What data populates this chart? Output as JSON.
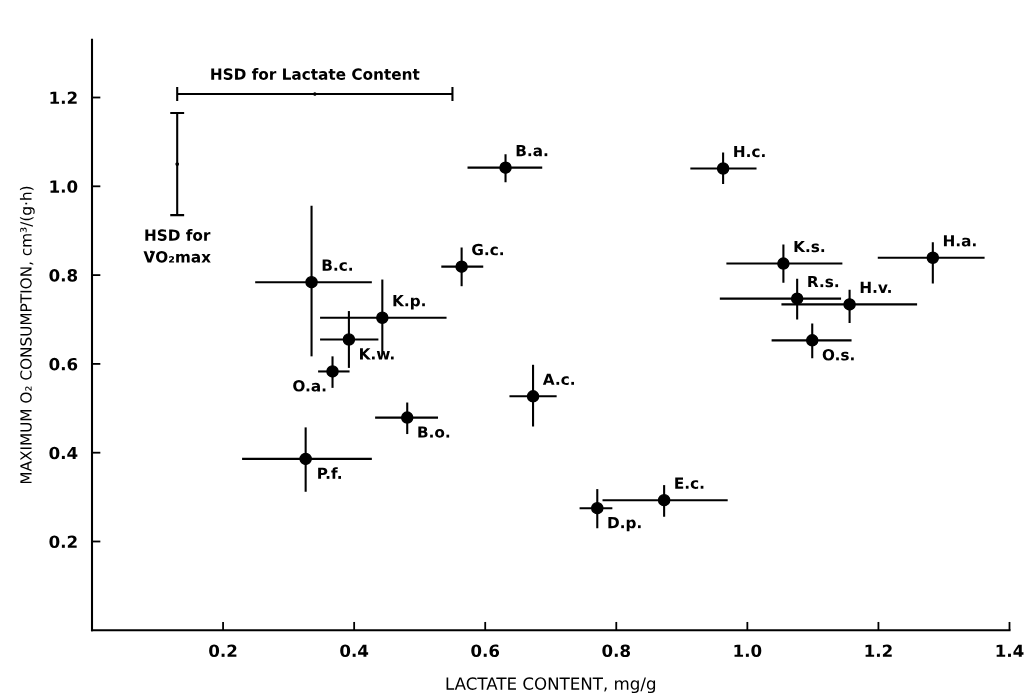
{
  "chart_data": {
    "type": "scatter",
    "xlabel": "LACTATE CONTENT, mg/g",
    "ylabel": "MAXIMUM O₂ CONSUMPTION, cm³/(g·h)",
    "xlim": [
      0,
      1.4
    ],
    "xticks": [
      0.2,
      0.4,
      0.6,
      0.8,
      {
        "value": 1,
        "label": "1.0"
      },
      1.2,
      1.4
    ],
    "ylim": [
      0,
      1.33
    ],
    "yticks": [
      0.2,
      0.4,
      0.6,
      0.8,
      {
        "value": 1,
        "label": "1.0"
      },
      1.2
    ],
    "grid": false,
    "series": [
      {
        "type": "scatter",
        "marker": "circle",
        "color": "#000000",
        "x": [
          0.631,
          0.564,
          0.335,
          0.443,
          0.392,
          0.367,
          0.673,
          0.481,
          0.326,
          0.771,
          0.873,
          0.963,
          1.055,
          1.283,
          1.076,
          1.156,
          1.099
        ],
        "values": [
          1.042,
          0.819,
          0.784,
          0.704,
          0.655,
          0.583,
          0.527,
          0.479,
          0.386,
          0.275,
          0.293,
          1.04,
          0.826,
          0.839,
          0.747,
          0.734,
          0.653
        ],
        "errors": [
          [
            1.009,
            1.072
          ],
          [
            0.775,
            0.862
          ],
          [
            0.617,
            0.956
          ],
          [
            0.621,
            0.79
          ],
          [
            0.591,
            0.719
          ],
          [
            0.546,
            0.617
          ],
          [
            0.459,
            0.598
          ],
          [
            0.442,
            0.513
          ],
          [
            0.312,
            0.457
          ],
          [
            0.23,
            0.318
          ],
          [
            0.256,
            0.327
          ],
          [
            1.005,
            1.076
          ],
          [
            0.783,
            0.869
          ],
          [
            0.781,
            0.874
          ],
          [
            0.7,
            0.792
          ],
          [
            0.692,
            0.767
          ],
          [
            0.613,
            0.691
          ]
        ],
        "xerrors": [
          [
            0.573,
            0.687
          ],
          [
            0.533,
            0.597
          ],
          [
            0.249,
            0.427
          ],
          [
            0.348,
            0.541
          ],
          [
            0.348,
            0.437
          ],
          [
            0.345,
            0.393
          ],
          [
            0.637,
            0.709
          ],
          [
            0.432,
            0.528
          ],
          [
            0.229,
            0.427
          ],
          [
            0.744,
            0.794
          ],
          [
            0.779,
            0.97
          ],
          [
            0.913,
            1.014
          ],
          [
            0.968,
            1.145
          ],
          [
            1.199,
            1.362
          ],
          [
            0.958,
            1.143
          ],
          [
            1.052,
            1.259
          ],
          [
            1.037,
            1.159
          ]
        ]
      },
      {
        "type": "scatter",
        "marker": "none",
        "color": "#000000",
        "x": [
          0.13,
          0.34
        ],
        "values": [
          1.05,
          1.208
        ],
        "errors": [
          [
            0.935,
            1.165
          ],
          null
        ],
        "xerrors": [
          null,
          [
            0.13,
            0.55
          ]
        ]
      }
    ],
    "annotations": [
      {
        "text": "HSD for Lactate Content",
        "x": 0.34,
        "y": 1.208
      },
      {
        "text": "HSD for\nV̇O₂max",
        "x": 0.13,
        "y": 0.935
      },
      {
        "text": "B.a.",
        "x": 0.631,
        "y": 1.042
      },
      {
        "text": "G.c.",
        "x": 0.564,
        "y": 0.819
      },
      {
        "text": "B.c.",
        "x": 0.335,
        "y": 0.784
      },
      {
        "text": "K.p.",
        "x": 0.443,
        "y": 0.704
      },
      {
        "text": "K.w.",
        "x": 0.392,
        "y": 0.655
      },
      {
        "text": "O.a.",
        "x": 0.367,
        "y": 0.583
      },
      {
        "text": "A.c.",
        "x": 0.673,
        "y": 0.527
      },
      {
        "text": "B.o.",
        "x": 0.481,
        "y": 0.479
      },
      {
        "text": "P.f.",
        "x": 0.326,
        "y": 0.386
      },
      {
        "text": "D.p.",
        "x": 0.771,
        "y": 0.275
      },
      {
        "text": "E.c.",
        "x": 0.873,
        "y": 0.293
      },
      {
        "text": "H.c.",
        "x": 0.963,
        "y": 1.04
      },
      {
        "text": "K.s.",
        "x": 1.055,
        "y": 0.826
      },
      {
        "text": "H.a.",
        "x": 1.283,
        "y": 0.839
      },
      {
        "text": "R.s.",
        "x": 1.076,
        "y": 0.747
      },
      {
        "text": "H.v.",
        "x": 1.156,
        "y": 0.734
      },
      {
        "text": "O.s.",
        "x": 1.099,
        "y": 0.653
      }
    ]
  }
}
